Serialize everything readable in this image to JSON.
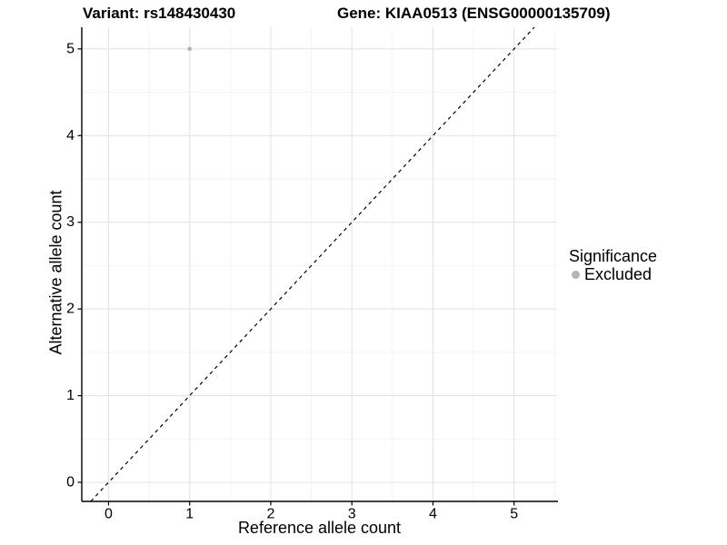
{
  "figure": {
    "background": "#ffffff"
  },
  "chart_data": {
    "type": "scatter",
    "titles": {
      "left": "Variant: rs148430430",
      "right": "Gene: KIAA0513 (ENSG00000135709)"
    },
    "xlabel": "Reference allele count",
    "ylabel": "Alternative allele count",
    "x_ticks": [
      0,
      1,
      2,
      3,
      4,
      5
    ],
    "y_ticks": [
      0,
      1,
      2,
      3,
      4,
      5
    ],
    "xlim": [
      -0.33,
      5.53
    ],
    "ylim": [
      -0.22,
      5.25
    ],
    "grid": {
      "major": true,
      "minor": true,
      "major_color": "#e4e4e4",
      "minor_color": "#f2f2f2"
    },
    "axis_color": "#000000",
    "identity_line": {
      "slope": 1,
      "intercept": 0,
      "style": "dashed",
      "color": "#000000"
    },
    "series": [
      {
        "name": "Excluded",
        "color": "#b5b5b5",
        "points": [
          {
            "x": 1,
            "y": 5
          }
        ]
      }
    ],
    "legend": {
      "title": "Significance",
      "position": "right",
      "items": [
        {
          "label": "Excluded",
          "color": "#b5b5b5",
          "marker": "circle"
        }
      ]
    }
  }
}
